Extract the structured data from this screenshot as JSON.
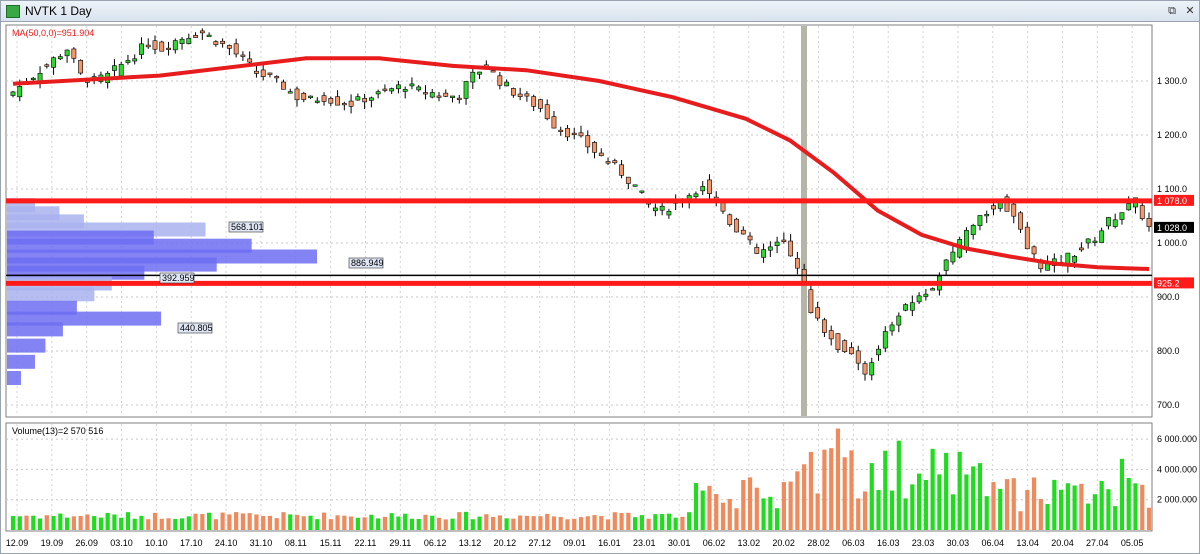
{
  "window": {
    "title": "NVTK 1 Day",
    "restore_glyph": "⧉",
    "close_glyph": "✕"
  },
  "price_panel": {
    "ma_label": "MA(50,0,0)=951.904",
    "ma_color": "#e81c1c",
    "resistance_tag": "1 078.0",
    "last_price_tag": "1 028.0",
    "support_tag": "925.2",
    "volume_profile_labels": [
      "568.101",
      "886.949",
      "392.959",
      "440.805"
    ]
  },
  "volume_panel": {
    "label": "Volume(13)=2 570 516",
    "up_color": "#1fdc1f",
    "down_color": "#f08a5d"
  },
  "colors": {
    "bull_candle": "#2ed62e",
    "bear_candle": "#f4956a",
    "level_line": "#ff1a1a",
    "profile_dark": "#6d6df2",
    "profile_light": "#a9b3ef"
  },
  "chart_data": [
    {
      "type": "candlestick",
      "title": "NVTK 1 Day",
      "ylim": [
        680,
        1390
      ],
      "y_ticks": [
        "1 300.0",
        "1 200.0",
        "1 100.0",
        "1 000.0",
        "900.0",
        "800.0",
        "700.0"
      ],
      "x_ticks": [
        "12.09",
        "19.09",
        "26.09",
        "03.10",
        "10.10",
        "17.10",
        "24.10",
        "31.10",
        "08.11",
        "15.11",
        "22.11",
        "29.11",
        "06.12",
        "13.12",
        "20.12",
        "27.12",
        "09.01",
        "16.01",
        "23.01",
        "30.01",
        "06.02",
        "13.02",
        "20.02",
        "28.02",
        "06.03",
        "16.03",
        "23.03",
        "30.03",
        "06.04",
        "13.04",
        "20.04",
        "27.04",
        "05.05"
      ],
      "levels": [
        1078.0,
        925.2,
        940
      ],
      "last_price": 1028.0,
      "close_series": [
        [
          0,
          1280
        ],
        [
          2,
          1300
        ],
        [
          4,
          1320
        ],
        [
          6,
          1340
        ],
        [
          8,
          1360
        ],
        [
          10,
          1310
        ],
        [
          12,
          1300
        ],
        [
          14,
          1310
        ],
        [
          16,
          1330
        ],
        [
          18,
          1350
        ],
        [
          20,
          1370
        ],
        [
          22,
          1360
        ],
        [
          24,
          1375
        ],
        [
          26,
          1385
        ],
        [
          28,
          1390
        ],
        [
          30,
          1375
        ],
        [
          32,
          1360
        ],
        [
          34,
          1340
        ],
        [
          36,
          1315
        ],
        [
          38,
          1305
        ],
        [
          40,
          1290
        ],
        [
          42,
          1270
        ],
        [
          44,
          1265
        ],
        [
          46,
          1270
        ],
        [
          48,
          1262
        ],
        [
          50,
          1258
        ],
        [
          52,
          1268
        ],
        [
          54,
          1275
        ],
        [
          56,
          1285
        ],
        [
          58,
          1292
        ],
        [
          60,
          1282
        ],
        [
          62,
          1278
        ],
        [
          64,
          1270
        ],
        [
          66,
          1275
        ],
        [
          68,
          1310
        ],
        [
          70,
          1330
        ],
        [
          72,
          1300
        ],
        [
          74,
          1280
        ],
        [
          76,
          1265
        ],
        [
          78,
          1250
        ],
        [
          80,
          1220
        ],
        [
          82,
          1205
        ],
        [
          84,
          1190
        ],
        [
          86,
          1170
        ],
        [
          88,
          1150
        ],
        [
          90,
          1130
        ],
        [
          92,
          1105
        ],
        [
          94,
          1070
        ],
        [
          96,
          1060
        ],
        [
          98,
          1075
        ],
        [
          100,
          1090
        ],
        [
          102,
          1110
        ],
        [
          104,
          1080
        ],
        [
          106,
          1040
        ],
        [
          108,
          1015
        ],
        [
          110,
          980
        ],
        [
          112,
          990
        ],
        [
          114,
          1000
        ],
        [
          116,
          960
        ],
        [
          118,
          880
        ],
        [
          120,
          840
        ],
        [
          122,
          810
        ],
        [
          124,
          790
        ],
        [
          126,
          760
        ],
        [
          128,
          810
        ],
        [
          130,
          850
        ],
        [
          132,
          880
        ],
        [
          134,
          900
        ],
        [
          136,
          920
        ],
        [
          138,
          960
        ],
        [
          140,
          1000
        ],
        [
          142,
          1030
        ],
        [
          144,
          1060
        ],
        [
          146,
          1080
        ],
        [
          148,
          1050
        ],
        [
          150,
          990
        ],
        [
          152,
          960
        ],
        [
          154,
          962
        ],
        [
          156,
          975
        ],
        [
          158,
          990
        ],
        [
          160,
          1010
        ],
        [
          162,
          1040
        ],
        [
          164,
          1060
        ],
        [
          166,
          1075
        ],
        [
          168,
          1028
        ]
      ],
      "ma_series": [
        [
          0,
          1295
        ],
        [
          20,
          1310
        ],
        [
          40,
          1342
        ],
        [
          50,
          1342
        ],
        [
          60,
          1328
        ],
        [
          70,
          1320
        ],
        [
          80,
          1300
        ],
        [
          90,
          1270
        ],
        [
          100,
          1230
        ],
        [
          106,
          1190
        ],
        [
          112,
          1130
        ],
        [
          118,
          1060
        ],
        [
          124,
          1015
        ],
        [
          130,
          990
        ],
        [
          136,
          975
        ],
        [
          142,
          962
        ],
        [
          148,
          955
        ],
        [
          155,
          951.9
        ]
      ],
      "volume_profile": [
        {
          "price": 1070,
          "volume": 80
        },
        {
          "price": 1055,
          "volume": 150
        },
        {
          "price": 1040,
          "volume": 220
        },
        {
          "price": 1025,
          "volume": 568.101
        },
        {
          "price": 1010,
          "volume": 420
        },
        {
          "price": 995,
          "volume": 700
        },
        {
          "price": 975,
          "volume": 886.949
        },
        {
          "price": 960,
          "volume": 600
        },
        {
          "price": 945,
          "volume": 392.959
        },
        {
          "price": 925,
          "volume": 300
        },
        {
          "price": 905,
          "volume": 250
        },
        {
          "price": 880,
          "volume": 200
        },
        {
          "price": 860,
          "volume": 440.805
        },
        {
          "price": 840,
          "volume": 160
        },
        {
          "price": 810,
          "volume": 110
        },
        {
          "price": 780,
          "volume": 80
        },
        {
          "price": 750,
          "volume": 40
        }
      ]
    },
    {
      "type": "bar",
      "title": "Volume(13)=2 570 516",
      "ylim": [
        0,
        7000000
      ],
      "y_ticks": [
        "6 000.000",
        "4 000.000",
        "2 000.000"
      ]
    }
  ]
}
